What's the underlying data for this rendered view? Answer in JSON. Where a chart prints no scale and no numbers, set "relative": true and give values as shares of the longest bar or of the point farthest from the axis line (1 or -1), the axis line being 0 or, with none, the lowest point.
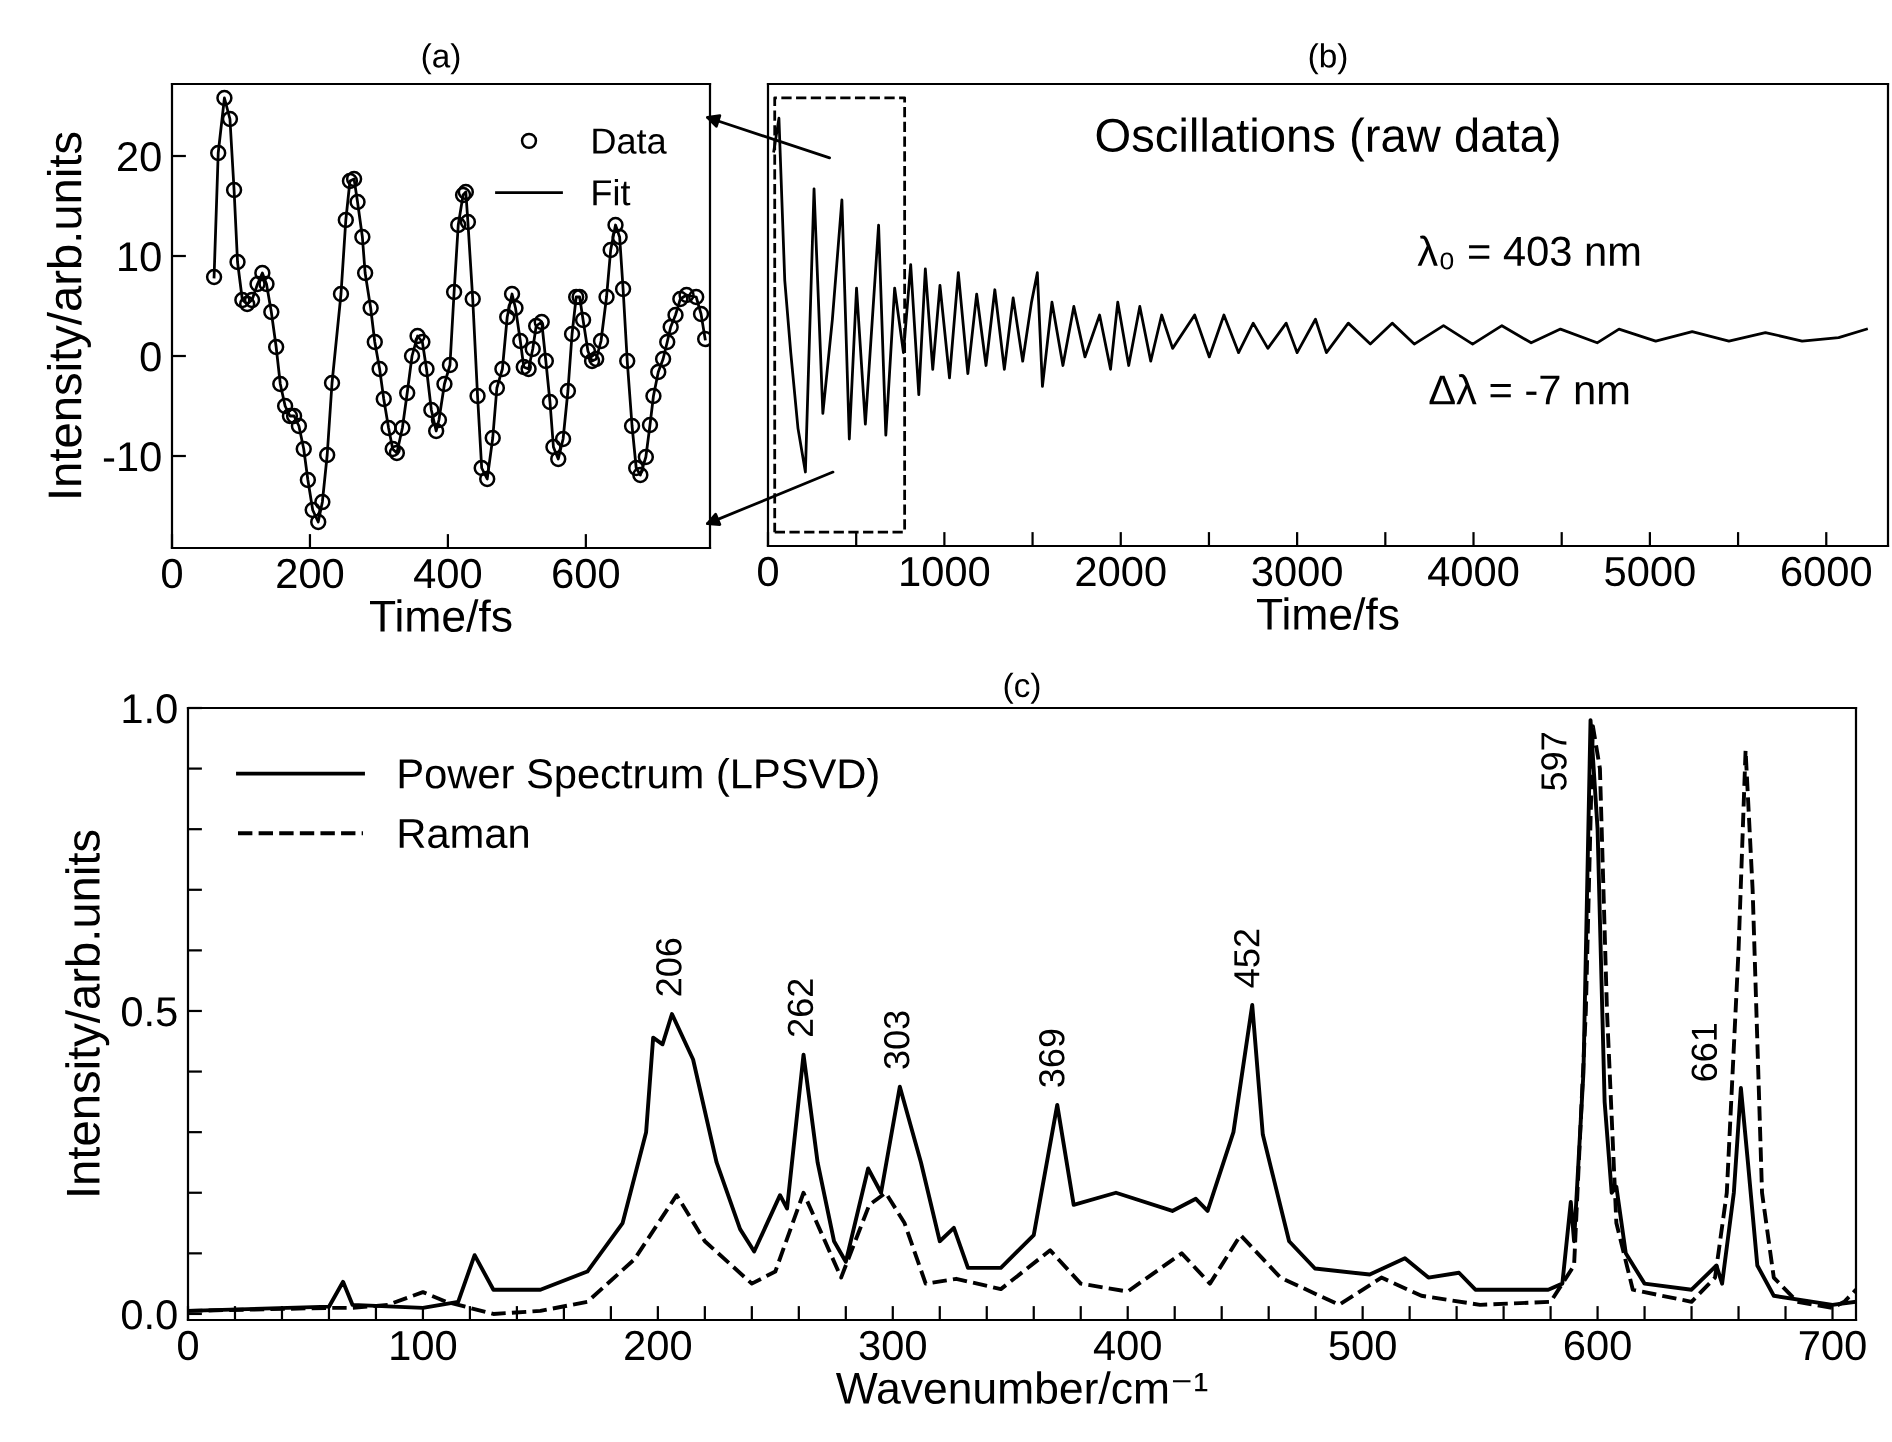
{
  "chart_data": [
    {
      "type": "line",
      "title": "(a)",
      "xlabel": "Time/fs",
      "ylabel": "Intensity/arb.units",
      "xlim": [
        0,
        780
      ],
      "ylim": [
        -19.2,
        27.2
      ],
      "xticks": [
        0,
        200,
        400,
        600
      ],
      "yticks": [
        -10,
        0,
        10,
        20
      ],
      "legend": "top right",
      "grid": false,
      "x": [
        61,
        67,
        76,
        84,
        90,
        95,
        102,
        109,
        116,
        124,
        131,
        137,
        144,
        151,
        157,
        164,
        171,
        177,
        184,
        191,
        197,
        204,
        212,
        218,
        225,
        232,
        245,
        252,
        258,
        264,
        269,
        276,
        280,
        288,
        294,
        301,
        307,
        314,
        320,
        326,
        334,
        341,
        348,
        356,
        363,
        369,
        376,
        383,
        387,
        395,
        403,
        409,
        415,
        422,
        426,
        429,
        436,
        443,
        449,
        457,
        465,
        471,
        479,
        486,
        493,
        498,
        505,
        510,
        517,
        523,
        528,
        536,
        542,
        548,
        553,
        560,
        567,
        574,
        580,
        586,
        591,
        596,
        603,
        609,
        615,
        622,
        630,
        636,
        643,
        649,
        654,
        660,
        667,
        673,
        679,
        687,
        693,
        698,
        705,
        712,
        718,
        723,
        730,
        737,
        746,
        760,
        767,
        773
      ],
      "series": [
        {
          "name": "Data",
          "type": "scatter",
          "marker": "circle",
          "color": "#000000",
          "values": [
            7.9,
            20.3,
            25.8,
            23.7,
            16.6,
            9.4,
            5.6,
            5.2,
            5.6,
            7.2,
            8.3,
            7.2,
            4.4,
            0.9,
            -2.8,
            -5.0,
            -6.0,
            -6.0,
            -7.0,
            -9.3,
            -12.4,
            -15.4,
            -16.6,
            -14.6,
            -9.9,
            -2.7,
            6.2,
            13.6,
            17.5,
            17.7,
            15.4,
            11.9,
            8.3,
            4.8,
            1.4,
            -1.3,
            -4.3,
            -7.2,
            -9.3,
            -9.7,
            -7.2,
            -3.7,
            0.0,
            2.0,
            1.4,
            -1.3,
            -5.4,
            -7.5,
            -6.4,
            -2.8,
            -0.9,
            6.4,
            13.1,
            16.1,
            16.4,
            13.4,
            5.7,
            -4.0,
            -11.2,
            -12.3,
            -8.2,
            -3.2,
            -1.3,
            3.9,
            6.2,
            4.8,
            1.5,
            -1.1,
            -1.3,
            0.7,
            3.0,
            3.4,
            -0.5,
            -4.6,
            -9.1,
            -10.3,
            -8.3,
            -3.5,
            2.2,
            5.9,
            5.9,
            3.6,
            0.5,
            -0.5,
            -0.3,
            1.5,
            5.9,
            10.6,
            13.1,
            11.9,
            6.7,
            -0.5,
            -7.0,
            -11.2,
            -11.9,
            -10.1,
            -6.9,
            -4.0,
            -1.6,
            -0.3,
            1.4,
            2.9,
            4.1,
            5.7,
            6.1,
            5.9,
            4.2,
            1.7
          ]
        },
        {
          "name": "Fit",
          "type": "line",
          "line_style": "solid",
          "color": "#000000",
          "values": [
            7.9,
            20.3,
            25.8,
            23.7,
            16.6,
            9.4,
            5.6,
            5.2,
            5.6,
            7.2,
            8.3,
            7.2,
            4.4,
            0.9,
            -2.8,
            -5.0,
            -6.0,
            -6.0,
            -7.0,
            -9.3,
            -12.4,
            -15.4,
            -16.6,
            -14.6,
            -9.9,
            -2.7,
            6.2,
            13.6,
            17.5,
            17.7,
            15.4,
            11.9,
            8.3,
            4.8,
            1.4,
            -1.3,
            -4.3,
            -7.2,
            -9.3,
            -9.7,
            -7.2,
            -3.7,
            0.0,
            2.0,
            1.4,
            -1.3,
            -5.4,
            -7.5,
            -6.4,
            -2.8,
            -0.9,
            6.4,
            13.1,
            16.1,
            16.4,
            13.4,
            5.7,
            -4.0,
            -11.2,
            -12.3,
            -8.2,
            -3.2,
            -1.3,
            3.9,
            6.2,
            4.8,
            1.5,
            -1.1,
            -1.3,
            0.7,
            3.0,
            3.4,
            -0.5,
            -4.6,
            -9.1,
            -10.3,
            -8.3,
            -3.5,
            2.2,
            5.9,
            5.9,
            3.6,
            0.5,
            -0.5,
            -0.3,
            1.5,
            5.9,
            10.6,
            13.1,
            11.9,
            6.7,
            -0.5,
            -7.0,
            -11.2,
            -11.9,
            -10.1,
            -6.9,
            -4.0,
            -1.6,
            -0.3,
            1.4,
            2.9,
            4.1,
            5.7,
            6.1,
            5.9,
            4.2,
            1.7
          ]
        }
      ]
    },
    {
      "type": "line",
      "title": "(b)",
      "xlabel": "Time/fs",
      "xlim": [
        0,
        6350
      ],
      "relative": true,
      "tick_labels": "x",
      "grid": false,
      "xticks": [
        0,
        {
          "value": 500,
          "label": null
        },
        1000,
        {
          "value": 1500,
          "label": null
        },
        2000,
        {
          "value": 2500,
          "label": null
        },
        3000,
        {
          "value": 3500,
          "label": null
        },
        4000,
        {
          "value": 4500,
          "label": null
        },
        5000,
        {
          "value": 5500,
          "label": null
        },
        6000
      ],
      "annotations": [
        "Oscillations (raw data)",
        "λ₀ = 403 nm",
        "Δλ = -7 nm"
      ],
      "x": [
        33,
        62,
        95,
        129,
        170,
        212,
        261,
        311,
        365,
        419,
        461,
        502,
        552,
        627,
        668,
        718,
        768,
        809,
        855,
        892,
        934,
        975,
        1029,
        1079,
        1133,
        1183,
        1236,
        1286,
        1340,
        1390,
        1444,
        1494,
        1527,
        1556,
        1610,
        1672,
        1734,
        1797,
        1880,
        1942,
        1983,
        2045,
        2108,
        2170,
        2232,
        2294,
        2419,
        2502,
        2585,
        2668,
        2751,
        2834,
        2938,
        3000,
        3104,
        3166,
        3290,
        3415,
        3539,
        3664,
        3830,
        3995,
        4161,
        4327,
        4493,
        4701,
        4825,
        5033,
        5240,
        5448,
        5655,
        5863,
        6070,
        6228
      ],
      "series": [
        {
          "color": "#000000",
          "values": [
            0.923,
            1.0,
            0.621,
            0.452,
            0.275,
            0.173,
            0.835,
            0.31,
            0.53,
            0.809,
            0.25,
            0.603,
            0.285,
            0.75,
            0.259,
            0.603,
            0.452,
            0.658,
            0.354,
            0.648,
            0.413,
            0.609,
            0.393,
            0.639,
            0.403,
            0.589,
            0.422,
            0.599,
            0.413,
            0.58,
            0.432,
            0.57,
            0.639,
            0.373,
            0.57,
            0.422,
            0.56,
            0.442,
            0.54,
            0.413,
            0.57,
            0.422,
            0.56,
            0.432,
            0.54,
            0.462,
            0.54,
            0.442,
            0.54,
            0.452,
            0.521,
            0.462,
            0.521,
            0.452,
            0.53,
            0.452,
            0.521,
            0.472,
            0.521,
            0.472,
            0.515,
            0.472,
            0.515,
            0.475,
            0.507,
            0.475,
            0.507,
            0.479,
            0.501,
            0.479,
            0.499,
            0.479,
            0.487,
            0.507
          ]
        }
      ]
    },
    {
      "type": "line",
      "title": "(c)",
      "xlabel": "Wavenumber/cm⁻¹",
      "ylabel": "Intensity/arb.units",
      "xlim": [
        0,
        710
      ],
      "ylim": [
        -0.01,
        1.0
      ],
      "legend": "top left",
      "grid": false,
      "xticks": [
        0,
        {
          "value": 20,
          "label": null
        },
        {
          "value": 40,
          "label": null
        },
        {
          "value": 60,
          "label": null
        },
        {
          "value": 80,
          "label": null
        },
        100,
        {
          "value": 120,
          "label": null
        },
        {
          "value": 140,
          "label": null
        },
        {
          "value": 160,
          "label": null
        },
        {
          "value": 180,
          "label": null
        },
        200,
        {
          "value": 220,
          "label": null
        },
        {
          "value": 240,
          "label": null
        },
        {
          "value": 260,
          "label": null
        },
        {
          "value": 280,
          "label": null
        },
        300,
        {
          "value": 320,
          "label": null
        },
        {
          "value": 340,
          "label": null
        },
        {
          "value": 360,
          "label": null
        },
        {
          "value": 380,
          "label": null
        },
        400,
        {
          "value": 420,
          "label": null
        },
        {
          "value": 440,
          "label": null
        },
        {
          "value": 460,
          "label": null
        },
        {
          "value": 480,
          "label": null
        },
        500,
        {
          "value": 520,
          "label": null
        },
        {
          "value": 540,
          "label": null
        },
        {
          "value": 560,
          "label": null
        },
        {
          "value": 580,
          "label": null
        },
        600,
        {
          "value": 620,
          "label": null
        },
        {
          "value": 640,
          "label": null
        },
        {
          "value": 660,
          "label": null
        },
        {
          "value": 680,
          "label": null
        },
        700
      ],
      "yticks": [
        {
          "value": 0,
          "label": "0.0"
        },
        {
          "value": 0.1,
          "label": null
        },
        {
          "value": 0.2,
          "label": null
        },
        {
          "value": 0.3,
          "label": null
        },
        {
          "value": 0.4,
          "label": null
        },
        {
          "value": 0.5,
          "label": "0.5"
        },
        {
          "value": 0.6,
          "label": null
        },
        {
          "value": 0.7,
          "label": null
        },
        {
          "value": 0.8,
          "label": null
        },
        {
          "value": 0.9,
          "label": null
        },
        {
          "value": 1.0,
          "label": "1.0"
        }
      ],
      "annotations": [
        {
          "text": "206",
          "x": 206,
          "y": 0.495
        },
        {
          "text": "262",
          "x": 262,
          "y": 0.428
        },
        {
          "text": "303",
          "x": 303,
          "y": 0.375
        },
        {
          "text": "369",
          "x": 369,
          "y": 0.345
        },
        {
          "text": "452",
          "x": 452,
          "y": 0.51
        },
        {
          "text": "597",
          "x": 597,
          "y": 0.98
        },
        {
          "text": "661",
          "x": 661,
          "y": 0.373
        }
      ],
      "series": [
        {
          "name": "Power Spectrum (LPSVD)",
          "line_style": "solid",
          "color": "#000000",
          "x": [
            0,
            60,
            66,
            70,
            100,
            115,
            122,
            130,
            150,
            170,
            185,
            195,
            198,
            202,
            206,
            215,
            225,
            235,
            241,
            252,
            255,
            262,
            268,
            275,
            280,
            289.5,
            295,
            303,
            312,
            320,
            326,
            332,
            346,
            360,
            370,
            377,
            395,
            419,
            429,
            434,
            445,
            453,
            457.5,
            468.7,
            479.7,
            503,
            518,
            528,
            541,
            548,
            579,
            585,
            588.6,
            590,
            594,
            597,
            600,
            603,
            606,
            608,
            612,
            620,
            640,
            650.6,
            653,
            658,
            661,
            664,
            668,
            675,
            700,
            710
          ],
          "values": [
            0.005,
            0.012,
            0.053,
            0.015,
            0.01,
            0.02,
            0.097,
            0.04,
            0.04,
            0.07,
            0.15,
            0.3,
            0.456,
            0.445,
            0.495,
            0.42,
            0.25,
            0.14,
            0.103,
            0.196,
            0.174,
            0.428,
            0.25,
            0.12,
            0.086,
            0.24,
            0.2,
            0.375,
            0.25,
            0.12,
            0.142,
            0.076,
            0.076,
            0.13,
            0.345,
            0.18,
            0.2,
            0.17,
            0.19,
            0.17,
            0.3,
            0.51,
            0.296,
            0.12,
            0.075,
            0.065,
            0.092,
            0.06,
            0.068,
            0.04,
            0.04,
            0.05,
            0.185,
            0.12,
            0.4,
            0.98,
            0.8,
            0.35,
            0.2,
            0.21,
            0.1,
            0.05,
            0.04,
            0.08,
            0.05,
            0.2,
            0.373,
            0.25,
            0.08,
            0.03,
            0.015,
            0.02
          ]
        },
        {
          "name": "Raman",
          "line_style": "dashed",
          "color": "#000000",
          "x": [
            0,
            60,
            70,
            85,
            100,
            110,
            130,
            150,
            170,
            190,
            208,
            220,
            240,
            250,
            262,
            270,
            278,
            290,
            297,
            305,
            314,
            327,
            346,
            367,
            380,
            400,
            423,
            435,
            448,
            465,
            490,
            508,
            525,
            550,
            580,
            590,
            595,
            598,
            601,
            604,
            608,
            615,
            640,
            650,
            655,
            660,
            663,
            666,
            670,
            675,
            685,
            700,
            705,
            710
          ],
          "values": [
            0.005,
            0.01,
            0.01,
            0.015,
            0.036,
            0.02,
            0.0,
            0.005,
            0.02,
            0.09,
            0.196,
            0.12,
            0.05,
            0.07,
            0.2,
            0.13,
            0.06,
            0.18,
            0.2,
            0.15,
            0.05,
            0.058,
            0.041,
            0.105,
            0.05,
            0.037,
            0.1,
            0.05,
            0.13,
            0.06,
            0.015,
            0.06,
            0.03,
            0.015,
            0.02,
            0.08,
            0.5,
            0.97,
            0.9,
            0.5,
            0.15,
            0.04,
            0.02,
            0.06,
            0.2,
            0.6,
            0.93,
            0.7,
            0.2,
            0.06,
            0.02,
            0.01,
            0.02,
            0.04
          ]
        }
      ]
    }
  ]
}
